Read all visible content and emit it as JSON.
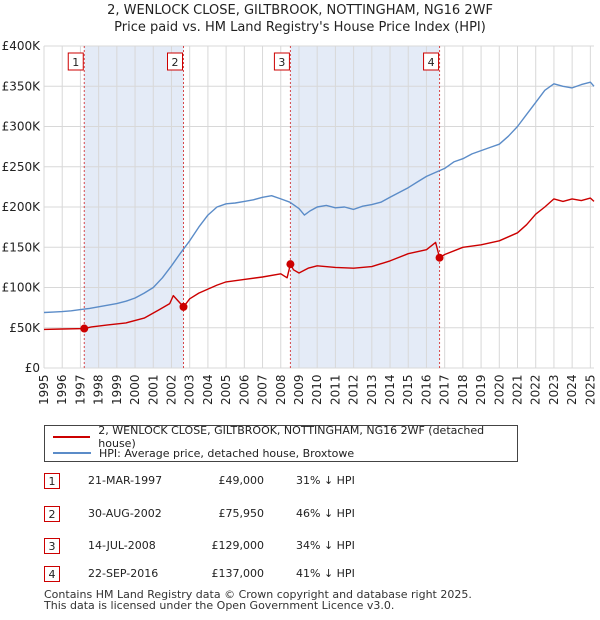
{
  "chart_data": {
    "type": "line",
    "title": "2, WENLOCK CLOSE, GILTBROOK, NOTTINGHAM, NG16 2WF",
    "subtitle": "Price paid vs. HM Land Registry's House Price Index (HPI)",
    "x_ticks": [
      "1995",
      "1996",
      "1997",
      "1998",
      "1999",
      "2000",
      "2001",
      "2002",
      "2003",
      "2004",
      "2005",
      "2006",
      "2007",
      "2008",
      "2009",
      "2010",
      "2011",
      "2012",
      "2013",
      "2014",
      "2015",
      "2016",
      "2017",
      "2018",
      "2019",
      "2020",
      "2021",
      "2022",
      "2023",
      "2024",
      "2025"
    ],
    "y_ticks": [
      "£0",
      "£50K",
      "£100K",
      "£150K",
      "£200K",
      "£250K",
      "£300K",
      "£350K",
      "£400K"
    ],
    "xlim": [
      1995,
      2025.2
    ],
    "ylim": [
      0,
      400000
    ],
    "grid": true,
    "colors": {
      "price": "#cc0000",
      "hpi": "#5b8cc8",
      "shade": "#dde6f5"
    },
    "series": [
      {
        "name": "2, WENLOCK CLOSE, GILTBROOK, NOTTINGHAM, NG16 2WF (detached house)",
        "key": "price",
        "x": [
          1995.0,
          1996.0,
          1997.21,
          1997.6,
          1998.5,
          1999.5,
          2000.5,
          2001.3,
          2001.9,
          2002.1,
          2002.66,
          2003.0,
          2003.5,
          2004.0,
          2004.5,
          2005.0,
          2006.0,
          2007.0,
          2008.0,
          2008.35,
          2008.53,
          2008.7,
          2009.0,
          2009.5,
          2010.0,
          2011.0,
          2012.0,
          2013.0,
          2014.0,
          2015.0,
          2016.0,
          2016.5,
          2016.72,
          2017.0,
          2018.0,
          2019.0,
          2020.0,
          2020.5,
          2021.0,
          2021.5,
          2022.0,
          2022.5,
          2023.0,
          2023.5,
          2024.0,
          2024.5,
          2025.0,
          2025.2
        ],
        "y": [
          48000,
          48500,
          49000,
          51000,
          53500,
          56000,
          62000,
          72000,
          80000,
          90000,
          75950,
          86000,
          93000,
          98000,
          103000,
          107000,
          110000,
          113000,
          117000,
          112000,
          129000,
          122000,
          118000,
          124000,
          127000,
          125000,
          124000,
          126000,
          133000,
          142000,
          147000,
          156000,
          137000,
          141000,
          150000,
          153000,
          158000,
          163000,
          168000,
          178000,
          191000,
          200000,
          210000,
          207000,
          210000,
          208000,
          211000,
          207000
        ]
      },
      {
        "name": "HPI: Average price, detached house, Broxtowe",
        "key": "hpi",
        "x": [
          1995.0,
          1995.5,
          1996.0,
          1996.5,
          1997.0,
          1997.5,
          1998.0,
          1998.5,
          1999.0,
          1999.5,
          2000.0,
          2000.5,
          2001.0,
          2001.5,
          2002.0,
          2002.5,
          2003.0,
          2003.5,
          2004.0,
          2004.5,
          2005.0,
          2005.5,
          2006.0,
          2006.5,
          2007.0,
          2007.5,
          2008.0,
          2008.5,
          2009.0,
          2009.3,
          2009.6,
          2010.0,
          2010.5,
          2011.0,
          2011.5,
          2012.0,
          2012.5,
          2013.0,
          2013.5,
          2014.0,
          2014.5,
          2015.0,
          2015.5,
          2016.0,
          2016.5,
          2017.0,
          2017.5,
          2018.0,
          2018.5,
          2019.0,
          2019.5,
          2020.0,
          2020.5,
          2021.0,
          2021.5,
          2022.0,
          2022.5,
          2023.0,
          2023.5,
          2024.0,
          2024.5,
          2025.0,
          2025.2
        ],
        "y": [
          69000,
          69500,
          70000,
          71000,
          72500,
          74000,
          76000,
          78000,
          80000,
          83000,
          87000,
          93000,
          100000,
          112000,
          127000,
          143000,
          158000,
          175000,
          190000,
          200000,
          204000,
          205000,
          207000,
          209000,
          212000,
          214000,
          210000,
          206000,
          198000,
          190000,
          195000,
          200000,
          202000,
          199000,
          200000,
          197000,
          201000,
          203000,
          206000,
          212000,
          218000,
          224000,
          231000,
          238000,
          243000,
          248000,
          256000,
          260000,
          266000,
          270000,
          274000,
          278000,
          288000,
          300000,
          315000,
          330000,
          345000,
          353000,
          350000,
          348000,
          352000,
          355000,
          350000
        ]
      }
    ],
    "sales": [
      {
        "label": "1",
        "x": 1997.21,
        "y": 49000
      },
      {
        "label": "2",
        "x": 2002.66,
        "y": 75950
      },
      {
        "label": "3",
        "x": 2008.53,
        "y": 129000
      },
      {
        "label": "4",
        "x": 2016.72,
        "y": 137000
      }
    ],
    "shaded_ranges": [
      [
        1997.21,
        2002.66
      ],
      [
        2008.53,
        2016.72
      ]
    ]
  },
  "legend": {
    "price_label": "2, WENLOCK CLOSE, GILTBROOK, NOTTINGHAM, NG16 2WF (detached house)",
    "hpi_label": "HPI: Average price, detached house, Broxtowe"
  },
  "sales_table": [
    {
      "num": "1",
      "date": "21-MAR-1997",
      "price": "£49,000",
      "hpi": "31% ↓ HPI"
    },
    {
      "num": "2",
      "date": "30-AUG-2002",
      "price": "£75,950",
      "hpi": "46% ↓ HPI"
    },
    {
      "num": "3",
      "date": "14-JUL-2008",
      "price": "£129,000",
      "hpi": "34% ↓ HPI"
    },
    {
      "num": "4",
      "date": "22-SEP-2016",
      "price": "£137,000",
      "hpi": "41% ↓ HPI"
    }
  ],
  "footer": {
    "line1": "Contains HM Land Registry data © Crown copyright and database right 2025.",
    "line2": "This data is licensed under the Open Government Licence v3.0."
  }
}
